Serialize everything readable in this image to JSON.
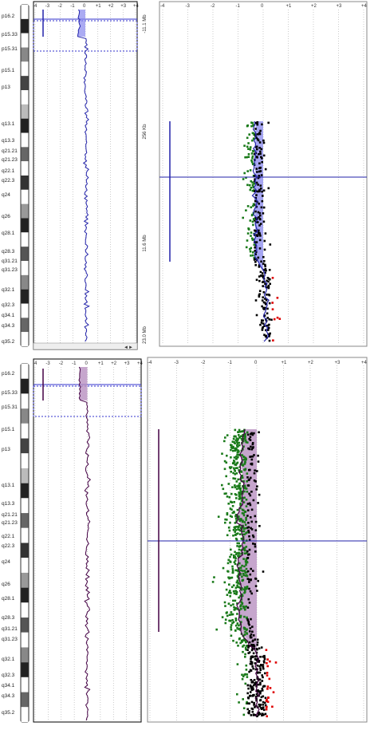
{
  "top": {
    "ideogram_bands": [
      "p16.2",
      "p15.33",
      "p15.31",
      "p15.1",
      "p13",
      "q13.1",
      "q13.3",
      "q21.21",
      "q21.23",
      "q22.1",
      "q22.3",
      "q24",
      "q26",
      "q28.1",
      "q28.3",
      "q31.21",
      "q31.23",
      "q32.1",
      "q32.3",
      "q34.1",
      "q34.3",
      "q35.2"
    ],
    "overview_ticks": [
      "-4",
      "-3",
      "-2",
      "-1",
      "0",
      "+1",
      "+2",
      "+3",
      "+4"
    ],
    "detail_ticks": [
      "-4",
      "-3",
      "-2",
      "-1",
      "0",
      "+1",
      "+2",
      "+3",
      "+4"
    ],
    "vertical_labels": [
      "-11.1 Mb",
      "256 Kb",
      "11.6 Mb",
      "23.0 Mb"
    ],
    "series_color": "#2222aa",
    "shade_color": "#8888ee",
    "scrollbar_arrows": "◄►"
  },
  "bottom": {
    "ideogram_bands": [
      "p16.2",
      "p15.33",
      "p15.31",
      "p15.1",
      "p13",
      "q13.1",
      "q13.3",
      "q21.21",
      "q21.23",
      "q22.1",
      "q22.3",
      "q24",
      "q26",
      "q28.1",
      "q28.3",
      "q31.21",
      "q31.23",
      "q32.1",
      "q32.3",
      "q34.1",
      "q34.3",
      "q35.2"
    ],
    "overview_ticks": [
      "-4",
      "-3",
      "-2",
      "-1",
      "0",
      "+1",
      "+2",
      "+3",
      "+4"
    ],
    "detail_ticks": [
      "-4",
      "-3",
      "-2",
      "-1",
      "0",
      "+1",
      "+2",
      "+3",
      "+4"
    ],
    "series_color": "#440044",
    "shade_color": "#b890c0"
  },
  "chart_data": [
    {
      "type": "scatter",
      "panel": "top-detail",
      "x_range": [
        -4,
        4
      ],
      "points_note": "log2 ratio probe values",
      "series": [
        {
          "name": "",
          "color": "#1a7a1a",
          "segment": "loss",
          "mean": -0.6
        },
        {
          "name": "",
          "color": "#000000",
          "segment": "normal",
          "mean": 0.1
        },
        {
          "name": "",
          "color": "#dd0000",
          "segment": "gain",
          "mean": 0.5
        }
      ],
      "moving_average": [
        {
          "pos": 0.0,
          "value": -0.3
        },
        {
          "pos": 0.08,
          "value": -0.3
        },
        {
          "pos": 0.16,
          "value": -0.35
        },
        {
          "pos": 0.26,
          "value": -0.3
        },
        {
          "pos": 0.36,
          "value": -0.35
        },
        {
          "pos": 0.46,
          "value": -0.3
        },
        {
          "pos": 0.56,
          "value": -0.35
        },
        {
          "pos": 0.62,
          "value": -0.3
        },
        {
          "pos": 0.66,
          "value": -0.1
        },
        {
          "pos": 0.7,
          "value": 0.1
        },
        {
          "pos": 0.78,
          "value": 0.15
        },
        {
          "pos": 0.86,
          "value": 0.1
        },
        {
          "pos": 0.94,
          "value": 0.15
        },
        {
          "pos": 1.0,
          "value": 0.15
        }
      ]
    },
    {
      "type": "scatter",
      "panel": "bottom-detail",
      "x_range": [
        -4,
        4
      ],
      "series": [
        {
          "name": "",
          "color": "#1a7a1a",
          "segment": "loss",
          "mean": -0.8
        },
        {
          "name": "",
          "color": "#000000",
          "segment": "normal",
          "mean": 0.0
        },
        {
          "name": "",
          "color": "#dd0000",
          "segment": "gain",
          "mean": 0.6
        }
      ],
      "moving_average": [
        {
          "pos": 0.0,
          "value": -0.5
        },
        {
          "pos": 0.1,
          "value": -0.6
        },
        {
          "pos": 0.2,
          "value": -0.5
        },
        {
          "pos": 0.3,
          "value": -0.7
        },
        {
          "pos": 0.38,
          "value": -0.5
        },
        {
          "pos": 0.46,
          "value": -0.7
        },
        {
          "pos": 0.56,
          "value": -0.6
        },
        {
          "pos": 0.64,
          "value": -0.7
        },
        {
          "pos": 0.7,
          "value": -0.6
        },
        {
          "pos": 0.74,
          "value": -0.3
        },
        {
          "pos": 0.78,
          "value": 0.0
        },
        {
          "pos": 0.86,
          "value": 0.0
        },
        {
          "pos": 0.94,
          "value": 0.0
        },
        {
          "pos": 1.0,
          "value": 0.0
        }
      ]
    }
  ]
}
